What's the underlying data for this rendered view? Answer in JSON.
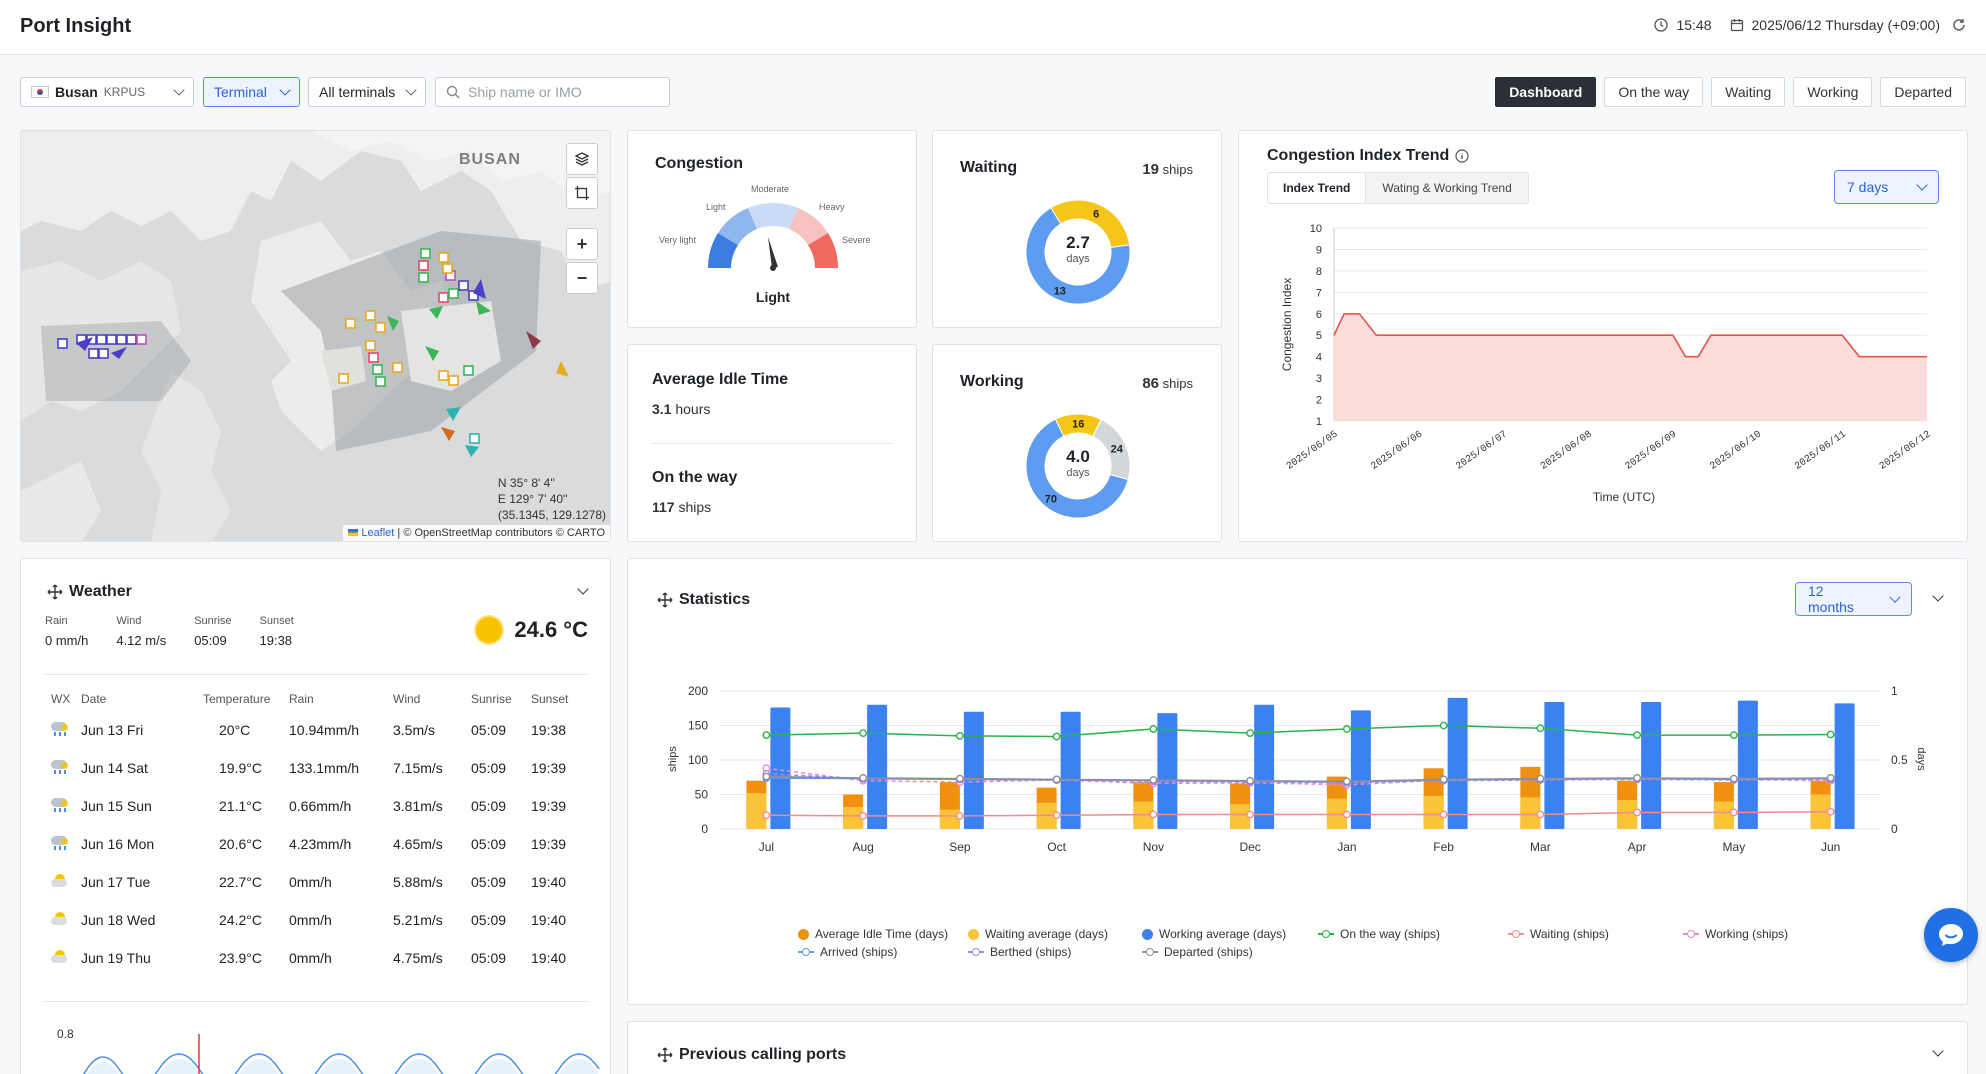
{
  "app": {
    "title": "Port Insight"
  },
  "header": {
    "time": "15:48",
    "date": "2025/06/12 Thursday (+09:00)"
  },
  "filters": {
    "port_name": "Busan",
    "port_code": "KRPUS",
    "type": "Terminal",
    "terminals": "All terminals",
    "search_placeholder": "Ship name or IMO"
  },
  "tabs": [
    "Dashboard",
    "On the way",
    "Waiting",
    "Working",
    "Departed"
  ],
  "map": {
    "city_label": "BUSAN",
    "coords_lat": "N 35° 8' 4''",
    "coords_lon": "E 129° 7' 40''",
    "coords_decimal": "(35.1345, 129.1278)",
    "attribution_link": "Leaflet",
    "attribution_text": "| © OpenStreetMap contributors © CARTO"
  },
  "congestion": {
    "title": "Congestion",
    "levels": [
      "Very light",
      "Light",
      "Moderate",
      "Heavy",
      "Severe"
    ],
    "current": "Light"
  },
  "waiting": {
    "title": "Waiting",
    "count": "19",
    "unit": "ships",
    "avg": "2.7",
    "avg_unit": "days",
    "segments": [
      {
        "label": "6",
        "value": 6,
        "color": "#f5c518"
      },
      {
        "label": "13",
        "value": 13,
        "color": "#5d9cf0"
      }
    ]
  },
  "working": {
    "title": "Working",
    "count": "86",
    "unit": "ships",
    "avg": "4.0",
    "avg_unit": "days",
    "segments": [
      {
        "label": "16",
        "value": 16,
        "color": "#f5c518"
      },
      {
        "label": "24",
        "value": 24,
        "color": "#d3d6db"
      },
      {
        "label": "70",
        "value": 70,
        "color": "#5d9cf0"
      }
    ]
  },
  "idle": {
    "title": "Average Idle Time",
    "value": "3.1",
    "unit": "hours"
  },
  "ontheway": {
    "title": "On the way",
    "value": "117",
    "unit": "ships"
  },
  "trend": {
    "title": "Congestion Index Trend",
    "tab_index": "Index Trend",
    "tab_ww": "Wating & Working Trend",
    "range": "7 days"
  },
  "chart_data": [
    {
      "type": "area",
      "title": "Congestion Index Trend",
      "xlabel": "Time (UTC)",
      "ylabel": "Congestion Index",
      "ylim": [
        1,
        10
      ],
      "x": [
        "2025/06/05",
        "2025/06/06",
        "2025/06/07",
        "2025/06/08",
        "2025/06/09",
        "2025/06/10",
        "2025/06/11",
        "2025/06/12"
      ],
      "points": [
        [
          0,
          5
        ],
        [
          0.12,
          6
        ],
        [
          0.3,
          6
        ],
        [
          0.5,
          5
        ],
        [
          4.0,
          5
        ],
        [
          4.15,
          4
        ],
        [
          4.3,
          4
        ],
        [
          4.45,
          5
        ],
        [
          6.0,
          5
        ],
        [
          6.2,
          4
        ],
        [
          7.0,
          4
        ]
      ],
      "grid": true
    },
    {
      "type": "bar",
      "title": "Statistics",
      "categories": [
        "Jul",
        "Aug",
        "Sep",
        "Oct",
        "Nov",
        "Dec",
        "Jan",
        "Feb",
        "Mar",
        "Apr",
        "May",
        "Jun"
      ],
      "ylabel": "ships",
      "y2label": "days",
      "ylim": [
        0,
        200
      ],
      "y2lim": [
        0,
        1
      ],
      "series": [
        {
          "name": "Average Idle Time (days)",
          "axis": "y2",
          "kind": "bar",
          "color": "#f0900f",
          "values": [
            0.35,
            0.25,
            0.34,
            0.3,
            0.34,
            0.33,
            0.38,
            0.44,
            0.45,
            0.35,
            0.34,
            0.35
          ]
        },
        {
          "name": "Waiting average (days)",
          "axis": "y2",
          "kind": "bar",
          "color": "#fbc33a",
          "values": [
            0.26,
            0.16,
            0.14,
            0.19,
            0.2,
            0.18,
            0.22,
            0.24,
            0.23,
            0.21,
            0.2,
            0.25
          ]
        },
        {
          "name": "Working average (days)",
          "axis": "y2",
          "kind": "bar",
          "color": "#3b82f0",
          "values": [
            0.88,
            0.9,
            0.85,
            0.85,
            0.84,
            0.9,
            0.86,
            0.95,
            0.92,
            0.92,
            0.93,
            0.91
          ]
        },
        {
          "name": "On the way (ships)",
          "axis": "y",
          "kind": "line",
          "color": "#27b44a",
          "values": [
            136,
            139,
            135,
            134,
            145,
            139,
            145,
            150,
            146,
            136,
            136,
            137
          ]
        },
        {
          "name": "Waiting (ships)",
          "axis": "y",
          "kind": "line",
          "color": "#f28b8b",
          "values": [
            20,
            19,
            19,
            20,
            21,
            21,
            21,
            21,
            21,
            24,
            24,
            25
          ]
        },
        {
          "name": "Working (ships)",
          "axis": "y",
          "kind": "line",
          "color": "#e889d8",
          "values": [
            88,
            70,
            68,
            71,
            66,
            67,
            64,
            71,
            72,
            73,
            72,
            70
          ]
        },
        {
          "name": "Arrived (ships)",
          "axis": "y",
          "kind": "line",
          "color": "#5b9bf0",
          "values": [
            74,
            73,
            72,
            71,
            70,
            69,
            68,
            71,
            72,
            73,
            72,
            73
          ]
        },
        {
          "name": "Berthed (ships)",
          "axis": "y",
          "kind": "line",
          "color": "#a487e8",
          "values": [
            80,
            73,
            72,
            71,
            69,
            68,
            67,
            70,
            71,
            72,
            71,
            72
          ]
        },
        {
          "name": "Departed (ships)",
          "axis": "y",
          "kind": "line",
          "color": "#8a8f97",
          "values": [
            76,
            74,
            73,
            72,
            71,
            70,
            69,
            72,
            73,
            74,
            73,
            74
          ]
        }
      ],
      "grid": true,
      "legend": "bottom"
    },
    {
      "type": "line",
      "title": "Weather tide",
      "ylim": [
        0,
        0.8
      ],
      "ytick": "0.8",
      "grid": false
    }
  ],
  "statistics": {
    "title": "Statistics",
    "range": "12 months"
  },
  "weather": {
    "title": "Weather",
    "rain_label": "Rain",
    "rain": "0 mm/h",
    "wind_label": "Wind",
    "wind": "4.12 m/s",
    "sunrise_label": "Sunrise",
    "sunrise": "05:09",
    "sunset_label": "Sunset",
    "sunset": "19:38",
    "temp": "24.6 °C",
    "columns": [
      "WX",
      "Date",
      "Temperature",
      "Rain",
      "Wind",
      "Sunrise",
      "Sunset"
    ],
    "rows": [
      {
        "wx": "rain-cloud-icon",
        "date": "Jun 13 Fri",
        "temp": "20°C",
        "rain": "10.94mm/h",
        "wind": "3.5m/s",
        "sunrise": "05:09",
        "sunset": "19:38"
      },
      {
        "wx": "rain-cloud-icon",
        "date": "Jun 14 Sat",
        "temp": "19.9°C",
        "rain": "133.1mm/h",
        "wind": "7.15m/s",
        "sunrise": "05:09",
        "sunset": "19:39"
      },
      {
        "wx": "rain-cloud-icon",
        "date": "Jun 15 Sun",
        "temp": "21.1°C",
        "rain": "0.66mm/h",
        "wind": "3.81m/s",
        "sunrise": "05:09",
        "sunset": "19:39"
      },
      {
        "wx": "rain-cloud-icon",
        "date": "Jun 16 Mon",
        "temp": "20.6°C",
        "rain": "4.23mm/h",
        "wind": "4.65m/s",
        "sunrise": "05:09",
        "sunset": "19:39"
      },
      {
        "wx": "sun-cloud-icon",
        "date": "Jun 17 Tue",
        "temp": "22.7°C",
        "rain": "0mm/h",
        "wind": "5.88m/s",
        "sunrise": "05:09",
        "sunset": "19:40"
      },
      {
        "wx": "sun-cloud-icon",
        "date": "Jun 18 Wed",
        "temp": "24.2°C",
        "rain": "0mm/h",
        "wind": "5.21m/s",
        "sunrise": "05:09",
        "sunset": "19:40"
      },
      {
        "wx": "sun-cloud-icon",
        "date": "Jun 19 Thu",
        "temp": "23.9°C",
        "rain": "0mm/h",
        "wind": "4.75m/s",
        "sunrise": "05:09",
        "sunset": "19:40"
      }
    ]
  },
  "previous": {
    "title": "Previous calling ports"
  }
}
